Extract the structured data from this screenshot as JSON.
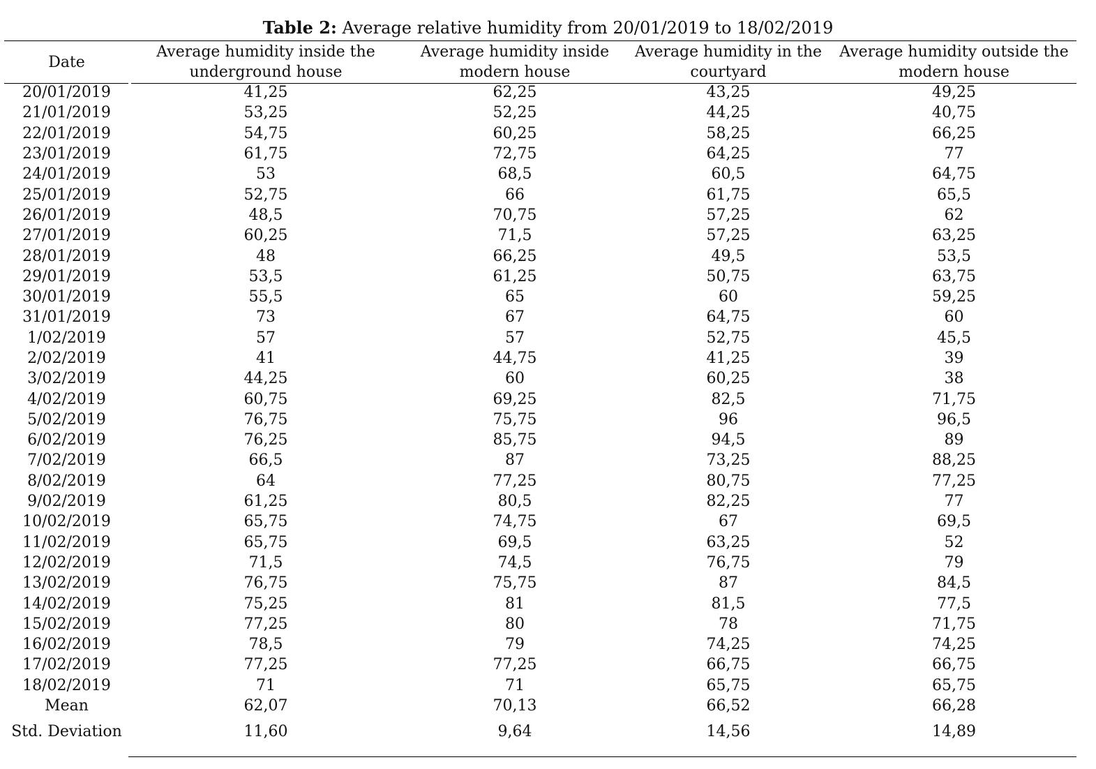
{
  "caption": {
    "label": "Table 2:",
    "text": "Average relative humidity from 20/01/2019 to 18/02/2019"
  },
  "table": {
    "headers": [
      "Date",
      "Average humidity inside the underground house",
      "Average humidity inside modern house",
      "Average humidity in the courtyard",
      "Average humidity outside the modern house"
    ],
    "rows": [
      [
        "20/01/2019",
        "41,25",
        "62,25",
        "43,25",
        "49,25"
      ],
      [
        "21/01/2019",
        "53,25",
        "52,25",
        "44,25",
        "40,75"
      ],
      [
        "22/01/2019",
        "54,75",
        "60,25",
        "58,25",
        "66,25"
      ],
      [
        "23/01/2019",
        "61,75",
        "72,75",
        "64,25",
        "77"
      ],
      [
        "24/01/2019",
        "53",
        "68,5",
        "60,5",
        "64,75"
      ],
      [
        "25/01/2019",
        "52,75",
        "66",
        "61,75",
        "65,5"
      ],
      [
        "26/01/2019",
        "48,5",
        "70,75",
        "57,25",
        "62"
      ],
      [
        "27/01/2019",
        "60,25",
        "71,5",
        "57,25",
        "63,25"
      ],
      [
        "28/01/2019",
        "48",
        "66,25",
        "49,5",
        "53,5"
      ],
      [
        "29/01/2019",
        "53,5",
        "61,25",
        "50,75",
        "63,75"
      ],
      [
        "30/01/2019",
        "55,5",
        "65",
        "60",
        "59,25"
      ],
      [
        "31/01/2019",
        "73",
        "67",
        "64,75",
        "60"
      ],
      [
        "1/02/2019",
        "57",
        "57",
        "52,75",
        "45,5"
      ],
      [
        "2/02/2019",
        "41",
        "44,75",
        "41,25",
        "39"
      ],
      [
        "3/02/2019",
        "44,25",
        "60",
        "60,25",
        "38"
      ],
      [
        "4/02/2019",
        "60,75",
        "69,25",
        "82,5",
        "71,75"
      ],
      [
        "5/02/2019",
        "76,75",
        "75,75",
        "96",
        "96,5"
      ],
      [
        "6/02/2019",
        "76,25",
        "85,75",
        "94,5",
        "89"
      ],
      [
        "7/02/2019",
        "66,5",
        "87",
        "73,25",
        "88,25"
      ],
      [
        "8/02/2019",
        "64",
        "77,25",
        "80,75",
        "77,25"
      ],
      [
        "9/02/2019",
        "61,25",
        "80,5",
        "82,25",
        "77"
      ],
      [
        "10/02/2019",
        "65,75",
        "74,75",
        "67",
        "69,5"
      ],
      [
        "11/02/2019",
        "65,75",
        "69,5",
        "63,25",
        "52"
      ],
      [
        "12/02/2019",
        "71,5",
        "74,5",
        "76,75",
        "79"
      ],
      [
        "13/02/2019",
        "76,75",
        "75,75",
        "87",
        "84,5"
      ],
      [
        "14/02/2019",
        "75,25",
        "81",
        "81,5",
        "77,5"
      ],
      [
        "15/02/2019",
        "77,25",
        "80",
        "78",
        "71,75"
      ],
      [
        "16/02/2019",
        "78,5",
        "79",
        "74,25",
        "74,25"
      ],
      [
        "17/02/2019",
        "77,25",
        "77,25",
        "66,75",
        "66,75"
      ],
      [
        "18/02/2019",
        "71",
        "71",
        "65,75",
        "65,75"
      ]
    ],
    "summary": [
      {
        "label": "Mean",
        "values": [
          "62,07",
          "70,13",
          "66,52",
          "66,28"
        ]
      },
      {
        "label": "Std. Deviation",
        "values": [
          "11,60",
          "9,64",
          "14,56",
          "14,89"
        ]
      }
    ]
  }
}
